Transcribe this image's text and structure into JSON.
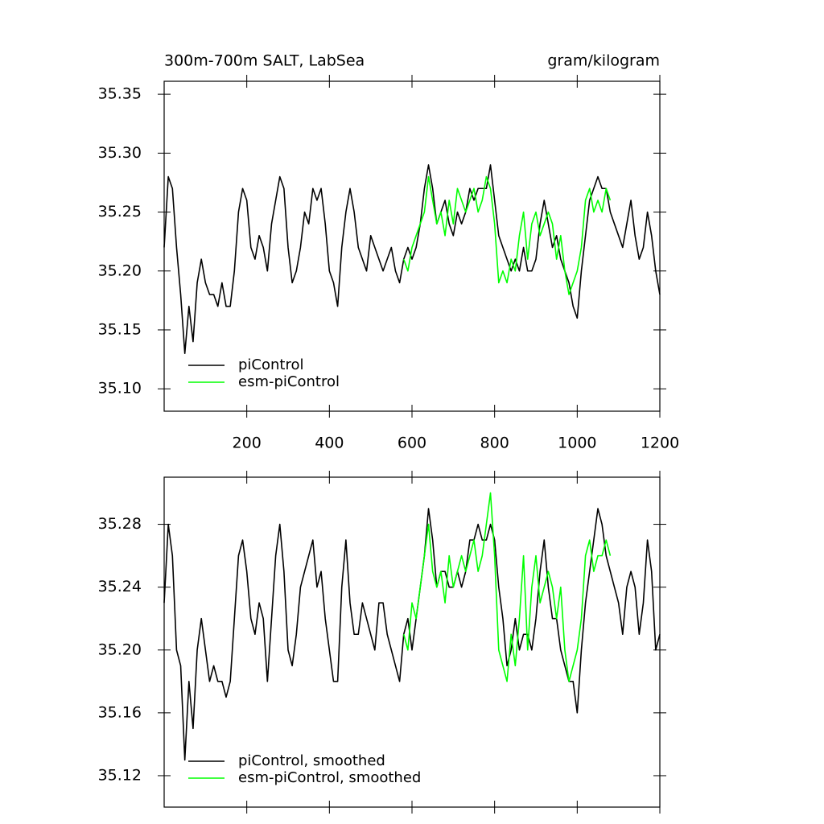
{
  "chart_data": [
    {
      "type": "line",
      "title": "300m-700m SALT, LabSea",
      "units_label": "gram/kilogram",
      "x": [
        0,
        10,
        20,
        30,
        40,
        50,
        60,
        70,
        80,
        90,
        100,
        110,
        120,
        130,
        140,
        150,
        160,
        170,
        180,
        190,
        200,
        210,
        220,
        230,
        240,
        250,
        260,
        270,
        280,
        290,
        300,
        310,
        320,
        330,
        340,
        350,
        360,
        370,
        380,
        390,
        400,
        410,
        420,
        430,
        440,
        450,
        460,
        470,
        480,
        490,
        500,
        510,
        520,
        530,
        540,
        550,
        560,
        570,
        580,
        590,
        600,
        610,
        620,
        630,
        640,
        650,
        660,
        670,
        680,
        690,
        700,
        710,
        720,
        730,
        740,
        750,
        760,
        770,
        780,
        790,
        800,
        810,
        820,
        830,
        840,
        850,
        860,
        870,
        880,
        890,
        900,
        910,
        920,
        930,
        940,
        950,
        960,
        970,
        980,
        990,
        1000,
        1010,
        1020,
        1030,
        1040,
        1050,
        1060,
        1070,
        1080,
        1090,
        1100,
        1110,
        1120,
        1130,
        1140,
        1150,
        1160,
        1170,
        1180,
        1190,
        1200
      ],
      "series": [
        {
          "name": "piControl",
          "color": "#000000",
          "values": [
            35.22,
            35.28,
            35.27,
            35.22,
            35.18,
            35.13,
            35.17,
            35.14,
            35.19,
            35.21,
            35.19,
            35.18,
            35.18,
            35.17,
            35.19,
            35.17,
            35.17,
            35.2,
            35.25,
            35.27,
            35.26,
            35.22,
            35.21,
            35.23,
            35.22,
            35.2,
            35.24,
            35.26,
            35.28,
            35.27,
            35.22,
            35.19,
            35.2,
            35.22,
            35.25,
            35.24,
            35.27,
            35.26,
            35.27,
            35.24,
            35.2,
            35.19,
            35.17,
            35.22,
            35.25,
            35.27,
            35.25,
            35.22,
            35.21,
            35.2,
            35.23,
            35.22,
            35.21,
            35.2,
            35.21,
            35.22,
            35.2,
            35.19,
            35.21,
            35.22,
            35.21,
            35.22,
            35.24,
            35.27,
            35.29,
            35.27,
            35.24,
            35.25,
            35.26,
            35.24,
            35.23,
            35.25,
            35.24,
            35.25,
            35.27,
            35.26,
            35.27,
            35.27,
            35.27,
            35.29,
            35.26,
            35.23,
            35.22,
            35.21,
            35.2,
            35.21,
            35.2,
            35.22,
            35.2,
            35.2,
            35.21,
            35.24,
            35.26,
            35.24,
            35.22,
            35.23,
            35.21,
            35.2,
            35.19,
            35.17,
            35.16,
            35.2,
            35.23,
            35.26,
            35.27,
            35.28,
            35.27,
            35.27,
            35.25,
            35.24,
            35.23,
            35.22,
            35.24,
            35.26,
            35.23,
            35.21,
            35.22,
            35.25,
            35.23,
            35.2,
            35.18
          ]
        },
        {
          "name": "esm-piControl",
          "color": "#00ff00",
          "x": [
            580,
            590,
            600,
            610,
            620,
            630,
            640,
            650,
            660,
            670,
            680,
            690,
            700,
            710,
            720,
            730,
            740,
            750,
            760,
            770,
            780,
            790,
            800,
            810,
            820,
            830,
            840,
            850,
            860,
            870,
            880,
            890,
            900,
            910,
            920,
            930,
            940,
            950,
            960,
            970,
            980,
            990,
            1000,
            1010,
            1020,
            1030,
            1040,
            1050,
            1060,
            1070,
            1080
          ],
          "values": [
            35.21,
            35.2,
            35.22,
            35.23,
            35.24,
            35.25,
            35.28,
            35.26,
            35.24,
            35.25,
            35.23,
            35.26,
            35.24,
            35.27,
            35.26,
            35.25,
            35.26,
            35.27,
            35.25,
            35.26,
            35.28,
            35.27,
            35.24,
            35.19,
            35.2,
            35.19,
            35.21,
            35.2,
            35.23,
            35.25,
            35.21,
            35.24,
            35.25,
            35.23,
            35.24,
            35.25,
            35.24,
            35.21,
            35.23,
            35.2,
            35.18,
            35.19,
            35.2,
            35.22,
            35.26,
            35.27,
            35.25,
            35.26,
            35.25,
            35.27,
            35.26
          ]
        }
      ],
      "xlim": [
        0,
        1200
      ],
      "xticks": [
        200,
        400,
        600,
        800,
        1000,
        1200
      ],
      "xtick_labels": true,
      "ylim": [
        35.081,
        35.361
      ],
      "yticks": [
        {
          "value": 35.1,
          "label": "35.10"
        },
        35.15,
        {
          "value": 35.2,
          "label": "35.20"
        },
        35.25,
        {
          "value": 35.3,
          "label": "35.30"
        },
        35.35
      ],
      "legend": "lower left"
    },
    {
      "type": "line",
      "x": [
        0,
        10,
        20,
        30,
        40,
        50,
        60,
        70,
        80,
        90,
        100,
        110,
        120,
        130,
        140,
        150,
        160,
        170,
        180,
        190,
        200,
        210,
        220,
        230,
        240,
        250,
        260,
        270,
        280,
        290,
        300,
        310,
        320,
        330,
        340,
        350,
        360,
        370,
        380,
        390,
        400,
        410,
        420,
        430,
        440,
        450,
        460,
        470,
        480,
        490,
        500,
        510,
        520,
        530,
        540,
        550,
        560,
        570,
        580,
        590,
        600,
        610,
        620,
        630,
        640,
        650,
        660,
        670,
        680,
        690,
        700,
        710,
        720,
        730,
        740,
        750,
        760,
        770,
        780,
        790,
        800,
        810,
        820,
        830,
        840,
        850,
        860,
        870,
        880,
        890,
        900,
        910,
        920,
        930,
        940,
        950,
        960,
        970,
        980,
        990,
        1000,
        1010,
        1020,
        1030,
        1040,
        1050,
        1060,
        1070,
        1080,
        1090,
        1100,
        1110,
        1120,
        1130,
        1140,
        1150,
        1160,
        1170,
        1180,
        1190,
        1200
      ],
      "series": [
        {
          "name": "piControl, smoothed",
          "color": "#000000",
          "values": [
            35.23,
            35.28,
            35.26,
            35.2,
            35.19,
            35.13,
            35.18,
            35.15,
            35.2,
            35.22,
            35.2,
            35.18,
            35.19,
            35.18,
            35.18,
            35.17,
            35.18,
            35.22,
            35.26,
            35.27,
            35.25,
            35.22,
            35.21,
            35.23,
            35.22,
            35.18,
            35.22,
            35.26,
            35.28,
            35.25,
            35.2,
            35.19,
            35.21,
            35.24,
            35.25,
            35.26,
            35.27,
            35.24,
            35.25,
            35.22,
            35.2,
            35.18,
            35.18,
            35.24,
            35.27,
            35.23,
            35.21,
            35.21,
            35.23,
            35.22,
            35.21,
            35.2,
            35.23,
            35.23,
            35.21,
            35.2,
            35.19,
            35.18,
            35.21,
            35.22,
            35.2,
            35.22,
            35.24,
            35.26,
            35.29,
            35.27,
            35.24,
            35.25,
            35.25,
            35.24,
            35.24,
            35.25,
            35.24,
            35.25,
            35.27,
            35.27,
            35.28,
            35.27,
            35.27,
            35.28,
            35.27,
            35.24,
            35.22,
            35.19,
            35.2,
            35.22,
            35.2,
            35.21,
            35.21,
            35.2,
            35.22,
            35.25,
            35.27,
            35.24,
            35.22,
            35.22,
            35.2,
            35.19,
            35.18,
            35.18,
            35.16,
            35.2,
            35.23,
            35.25,
            35.27,
            35.29,
            35.28,
            35.26,
            35.25,
            35.24,
            35.23,
            35.21,
            35.24,
            35.25,
            35.24,
            35.21,
            35.23,
            35.27,
            35.25,
            35.2,
            35.21
          ]
        },
        {
          "name": "esm-piControl, smoothed",
          "color": "#00ff00",
          "x": [
            580,
            590,
            600,
            610,
            620,
            630,
            640,
            650,
            660,
            670,
            680,
            690,
            700,
            710,
            720,
            730,
            740,
            750,
            760,
            770,
            780,
            790,
            800,
            810,
            820,
            830,
            840,
            850,
            860,
            870,
            880,
            890,
            900,
            910,
            920,
            930,
            940,
            950,
            960,
            970,
            980,
            990,
            1000,
            1010,
            1020,
            1030,
            1040,
            1050,
            1060,
            1070,
            1080
          ],
          "values": [
            35.21,
            35.2,
            35.23,
            35.22,
            35.24,
            35.26,
            35.28,
            35.25,
            35.24,
            35.25,
            35.23,
            35.26,
            35.24,
            35.25,
            35.26,
            35.25,
            35.26,
            35.27,
            35.25,
            35.26,
            35.28,
            35.3,
            35.26,
            35.2,
            35.19,
            35.18,
            35.21,
            35.19,
            35.22,
            35.26,
            35.2,
            35.24,
            35.26,
            35.23,
            35.24,
            35.25,
            35.24,
            35.22,
            35.24,
            35.2,
            35.18,
            35.19,
            35.2,
            35.22,
            35.26,
            35.27,
            35.25,
            35.26,
            35.26,
            35.27,
            35.26
          ]
        }
      ],
      "xlim": [
        0,
        1200
      ],
      "xticks": [
        200,
        400,
        600,
        800,
        1000,
        1200
      ],
      "xtick_labels": false,
      "ylim": [
        35.1,
        35.31
      ],
      "yticks": [
        35.12,
        35.16,
        {
          "value": 35.2,
          "label": "35.20"
        },
        35.24,
        35.28
      ],
      "legend": "lower left"
    }
  ]
}
